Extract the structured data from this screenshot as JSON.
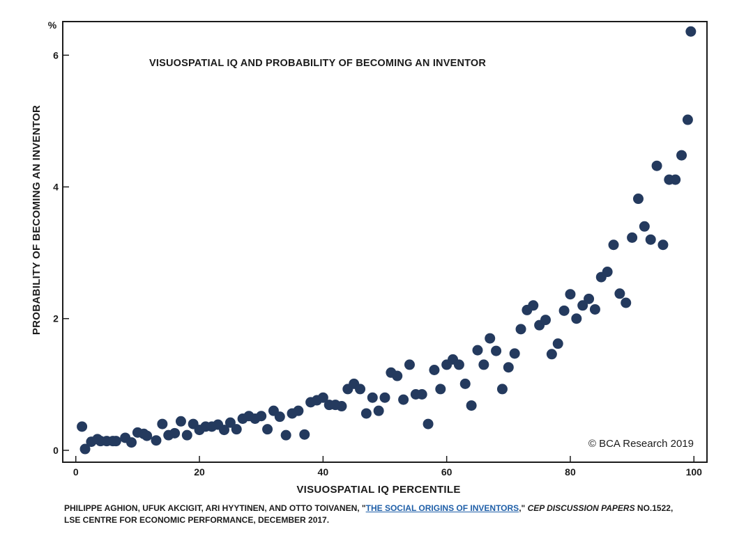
{
  "chart_data": {
    "type": "scatter",
    "title": "VISUOSPATIAL IQ AND PROBABILITY OF BECOMING AN INVENTOR",
    "xlabel": "VISUOSPATIAL IQ PERCENTILE",
    "ylabel": "PROBABILITY OF BECOMING AN INVENTOR",
    "y_unit": "%",
    "xlim": [
      -2,
      102
    ],
    "ylim": [
      -0.17,
      6.5
    ],
    "x_ticks": [
      0,
      20,
      40,
      60,
      80,
      100
    ],
    "y_ticks": [
      0,
      2,
      4,
      6
    ],
    "marker_color": "#243a5e",
    "points": [
      [
        1,
        0.36
      ],
      [
        1.5,
        0.02
      ],
      [
        2.5,
        0.13
      ],
      [
        3.5,
        0.17
      ],
      [
        4,
        0.14
      ],
      [
        5,
        0.14
      ],
      [
        6,
        0.14
      ],
      [
        6.5,
        0.14
      ],
      [
        8,
        0.19
      ],
      [
        9,
        0.12
      ],
      [
        10,
        0.27
      ],
      [
        11,
        0.25
      ],
      [
        11.5,
        0.22
      ],
      [
        13,
        0.15
      ],
      [
        14,
        0.4
      ],
      [
        15,
        0.23
      ],
      [
        16,
        0.26
      ],
      [
        17,
        0.44
      ],
      [
        18,
        0.23
      ],
      [
        19,
        0.4
      ],
      [
        20,
        0.31
      ],
      [
        21,
        0.36
      ],
      [
        22,
        0.36
      ],
      [
        23,
        0.39
      ],
      [
        24,
        0.31
      ],
      [
        25,
        0.42
      ],
      [
        26,
        0.32
      ],
      [
        27,
        0.48
      ],
      [
        28,
        0.52
      ],
      [
        29,
        0.48
      ],
      [
        30,
        0.52
      ],
      [
        31,
        0.32
      ],
      [
        32,
        0.6
      ],
      [
        33,
        0.51
      ],
      [
        34,
        0.23
      ],
      [
        35,
        0.56
      ],
      [
        36,
        0.6
      ],
      [
        37,
        0.24
      ],
      [
        38,
        0.73
      ],
      [
        39,
        0.76
      ],
      [
        40,
        0.8
      ],
      [
        41,
        0.69
      ],
      [
        42,
        0.69
      ],
      [
        43,
        0.67
      ],
      [
        44,
        0.93
      ],
      [
        45,
        1.01
      ],
      [
        46,
        0.93
      ],
      [
        47,
        0.56
      ],
      [
        48,
        0.8
      ],
      [
        49,
        0.6
      ],
      [
        50,
        0.8
      ],
      [
        51,
        1.18
      ],
      [
        52,
        1.13
      ],
      [
        53,
        0.77
      ],
      [
        54,
        1.3
      ],
      [
        55,
        0.85
      ],
      [
        56,
        0.85
      ],
      [
        57,
        0.4
      ],
      [
        58,
        1.22
      ],
      [
        59,
        0.93
      ],
      [
        60,
        1.3
      ],
      [
        61,
        1.38
      ],
      [
        62,
        1.3
      ],
      [
        63,
        1.01
      ],
      [
        64,
        0.68
      ],
      [
        65,
        1.52
      ],
      [
        66,
        1.3
      ],
      [
        67,
        1.7
      ],
      [
        68,
        1.51
      ],
      [
        69,
        0.93
      ],
      [
        70,
        1.26
      ],
      [
        71,
        1.47
      ],
      [
        72,
        1.84
      ],
      [
        73,
        2.13
      ],
      [
        74,
        2.2
      ],
      [
        75,
        1.9
      ],
      [
        76,
        1.98
      ],
      [
        77,
        1.46
      ],
      [
        78,
        1.62
      ],
      [
        79,
        2.12
      ],
      [
        80,
        2.37
      ],
      [
        81,
        2.0
      ],
      [
        82,
        2.2
      ],
      [
        83,
        2.3
      ],
      [
        84,
        2.14
      ],
      [
        85,
        2.63
      ],
      [
        86,
        2.71
      ],
      [
        87,
        3.12
      ],
      [
        88,
        2.38
      ],
      [
        89,
        2.24
      ],
      [
        90,
        3.23
      ],
      [
        91,
        3.82
      ],
      [
        92,
        3.4
      ],
      [
        93,
        3.2
      ],
      [
        94,
        4.32
      ],
      [
        95,
        3.12
      ],
      [
        96,
        4.11
      ],
      [
        97,
        4.11
      ],
      [
        98,
        4.48
      ],
      [
        99,
        5.02
      ],
      [
        99.5,
        6.36
      ]
    ]
  },
  "copyright": "© BCA Research 2019",
  "footnote": {
    "authors": "PHILIPPE AGHION, UFUK AKCIGIT, ARI HYYTINEN, AND OTTO TOIVANEN, \"",
    "link_text": "THE SOCIAL ORIGINS OF INVENTORS",
    "after_link": ",\" ",
    "journal": "CEP DISCUSSION PAPERS",
    "number": " NO.1522,",
    "line2": "LSE CENTRE FOR ECONOMIC PERFORMANCE, DECEMBER 2017."
  }
}
